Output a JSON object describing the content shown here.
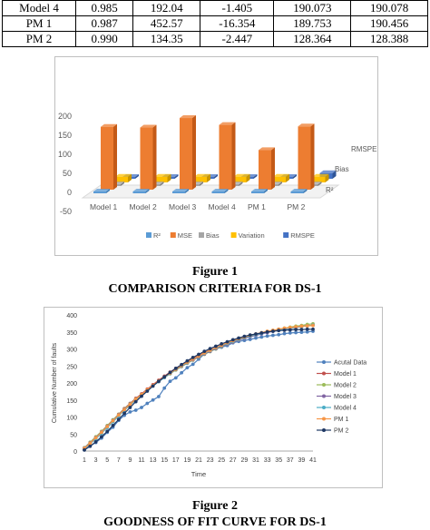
{
  "table": {
    "rows": [
      [
        "Model 4",
        "0.985",
        "192.04",
        "-1.405",
        "190.073",
        "190.078"
      ],
      [
        "PM 1",
        "0.987",
        "452.57",
        "-16.354",
        "189.753",
        "190.456"
      ],
      [
        "PM 2",
        "0.990",
        "134.35",
        "-2.447",
        "128.364",
        "128.388"
      ]
    ]
  },
  "figure1": {
    "caption_num": "Figure 1",
    "caption_title": "COMPARISON CRITERIA FOR DS-1",
    "chart_data": {
      "type": "bar",
      "categories": [
        "Model 1",
        "Model 2",
        "Model 3",
        "Model 4",
        "PM 1",
        "PM 2"
      ],
      "series": [
        {
          "name": "R²",
          "values": [
            1,
            1,
            1,
            1,
            1,
            1
          ]
        },
        {
          "name": "MSE",
          "values": [
            165,
            163,
            188,
            170,
            104,
            166
          ]
        },
        {
          "name": "Bias",
          "values": [
            0,
            0,
            0,
            0,
            0,
            0
          ]
        },
        {
          "name": "Variation",
          "values": [
            15,
            15,
            15,
            15,
            15,
            15
          ]
        },
        {
          "name": "RMSPE",
          "values": [
            0,
            0,
            0,
            0,
            0,
            15
          ]
        }
      ],
      "y_ticks": [
        "200",
        "150",
        "100",
        "50",
        "0",
        "-50"
      ],
      "ylim": [
        -50,
        200
      ],
      "depth_labels": [
        "RMSPE",
        "Bias",
        "R²"
      ],
      "legend_labels": [
        "R²",
        "MSE",
        "Bias",
        "Variation",
        "RMSPE"
      ],
      "colors": [
        "#5b9bd5",
        "#ed7d31",
        "#a5a5a5",
        "#ffc000",
        "#4472c4"
      ]
    }
  },
  "figure2": {
    "caption_num": "Figure 2",
    "caption_title": "GOODNESS OF FIT CURVE FOR DS-1",
    "chart_data": {
      "type": "line",
      "ylabel": "Cumulative Number of faults",
      "xlabel": "Time",
      "ylim": [
        0,
        400
      ],
      "y_ticks": [
        "400",
        "350",
        "300",
        "250",
        "200",
        "150",
        "100",
        "50",
        "0"
      ],
      "x_ticks": [
        "1",
        "3",
        "5",
        "7",
        "9",
        "11",
        "13",
        "15",
        "17",
        "19",
        "21",
        "23",
        "25",
        "27",
        "29",
        "31",
        "33",
        "35",
        "37",
        "39",
        "41"
      ],
      "series": [
        {
          "name": "Acutal Data",
          "color": "#4f81bd",
          "values": [
            5,
            15,
            25,
            38,
            55,
            70,
            90,
            105,
            115,
            120,
            128,
            140,
            150,
            160,
            185,
            205,
            215,
            230,
            245,
            255,
            270,
            285,
            295,
            300,
            305,
            310,
            318,
            322,
            325,
            328,
            332,
            335,
            338,
            340,
            342,
            345,
            347,
            348,
            349,
            350,
            352
          ]
        },
        {
          "name": "Model 1",
          "color": "#c0504d",
          "values": [
            8,
            22,
            38,
            55,
            72,
            90,
            108,
            125,
            140,
            155,
            168,
            182,
            195,
            208,
            220,
            232,
            243,
            253,
            263,
            272,
            281,
            289,
            297,
            304,
            311,
            317,
            323,
            328,
            333,
            338,
            342,
            346,
            350,
            353,
            356,
            359,
            362,
            364,
            366,
            368,
            370
          ]
        },
        {
          "name": "Model 2",
          "color": "#9bbb59",
          "values": [
            10,
            26,
            42,
            58,
            75,
            92,
            108,
            124,
            139,
            153,
            166,
            179,
            192,
            204,
            216,
            227,
            238,
            248,
            258,
            267,
            276,
            284,
            292,
            300,
            307,
            314,
            320,
            326,
            332,
            337,
            342,
            346,
            350,
            354,
            358,
            361,
            364,
            367,
            369,
            372,
            374
          ]
        },
        {
          "name": "Model 3",
          "color": "#8064a2",
          "values": [
            9,
            24,
            40,
            56,
            73,
            90,
            107,
            123,
            138,
            152,
            166,
            179,
            192,
            204,
            216,
            228,
            239,
            249,
            259,
            268,
            277,
            285,
            293,
            301,
            308,
            314,
            320,
            326,
            331,
            336,
            340,
            344,
            348,
            352,
            355,
            358,
            361,
            363,
            366,
            368,
            370
          ]
        },
        {
          "name": "Model 4",
          "color": "#4bacc6",
          "values": [
            7,
            21,
            36,
            52,
            69,
            86,
            103,
            120,
            135,
            150,
            164,
            178,
            191,
            204,
            216,
            228,
            239,
            250,
            260,
            270,
            279,
            287,
            295,
            303,
            310,
            316,
            322,
            328,
            333,
            338,
            342,
            346,
            350,
            353,
            356,
            359,
            361,
            364,
            366,
            368,
            370
          ]
        },
        {
          "name": "PM 1",
          "color": "#f79646",
          "values": [
            8,
            23,
            39,
            55,
            72,
            89,
            106,
            122,
            137,
            152,
            166,
            180,
            193,
            206,
            218,
            229,
            240,
            251,
            261,
            270,
            279,
            288,
            296,
            304,
            311,
            318,
            324,
            330,
            335,
            340,
            344,
            348,
            352,
            355,
            358,
            361,
            363,
            365,
            367,
            368,
            369
          ]
        },
        {
          "name": "PM 2",
          "color": "#1f3864",
          "values": [
            3,
            14,
            27,
            42,
            58,
            75,
            93,
            111,
            128,
            145,
            161,
            176,
            191,
            205,
            218,
            231,
            243,
            254,
            265,
            275,
            284,
            293,
            301,
            308,
            315,
            321,
            327,
            332,
            337,
            341,
            344,
            347,
            350,
            352,
            354,
            355,
            356,
            357,
            357,
            358,
            358
          ]
        }
      ]
    }
  }
}
